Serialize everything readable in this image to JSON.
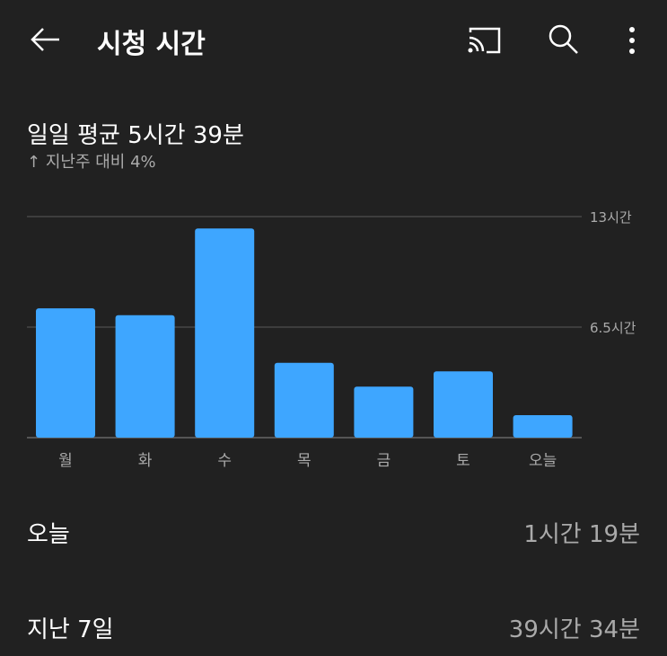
{
  "header": {
    "title": "시청 시간",
    "icons": [
      "back-arrow-icon",
      "cast-icon",
      "search-icon",
      "more-vert-icon"
    ]
  },
  "summary": {
    "daily_average": "일일 평균 5시간 39분",
    "comparison_arrow": "↑",
    "comparison": "지난주 대비 4%"
  },
  "chart_data": {
    "type": "bar",
    "categories": [
      "월",
      "화",
      "수",
      "목",
      "금",
      "토",
      "오늘"
    ],
    "values": [
      7.6,
      7.2,
      12.3,
      4.4,
      3.0,
      3.9,
      1.32
    ],
    "yunit": "hours",
    "ylim": [
      0,
      13
    ],
    "yticks": [
      {
        "value": 13,
        "label": "13시간"
      },
      {
        "value": 6.5,
        "label": "6.5시간"
      }
    ],
    "grid": true,
    "bar_color": "#3ea6ff"
  },
  "stats": [
    {
      "label": "오늘",
      "value": "1시간 19분"
    },
    {
      "label": "지난 7일",
      "value": "39시간 34분"
    }
  ]
}
